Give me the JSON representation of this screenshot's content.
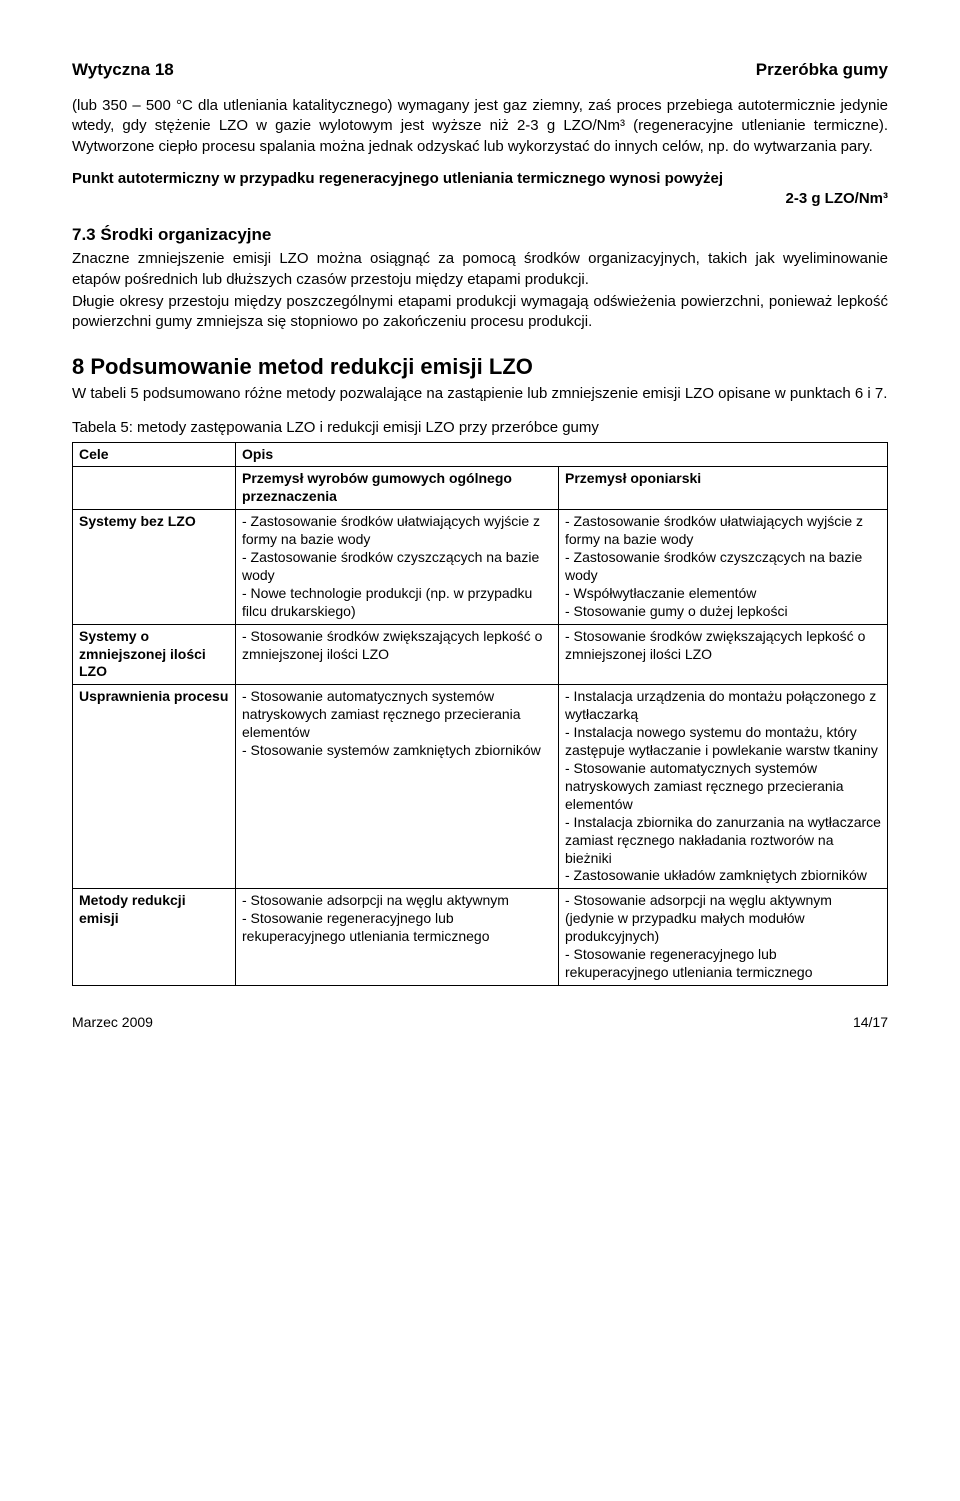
{
  "header": {
    "left": "Wytyczna 18",
    "right": "Przeróbka gumy"
  },
  "p1": "(lub 350 – 500 °C dla utleniania katalitycznego) wymagany jest gaz ziemny, zaś proces przebiega autotermicznie jedynie wtedy, gdy stężenie LZO w gazie wylotowym jest wyższe niż 2-3 g LZO/Nm³ (regeneracyjne utlenianie termiczne). Wytworzone ciepło procesu spalania można jednak odzyskać lub wykorzystać do innych celów, np. do wytwarzania pary.",
  "bold1_line1": "Punkt autotermiczny w przypadku regeneracyjnego utleniania termicznego wynosi powyżej",
  "bold1_line2": "2-3 g LZO/Nm³",
  "sec73_title": "7.3   Środki organizacyjne",
  "p73a": "Znaczne zmniejszenie emisji LZO można osiągnąć za pomocą środków organizacyjnych, takich jak wyeliminowanie etapów pośrednich lub dłuższych czasów przestoju między etapami produkcji.",
  "p73b": "Długie okresy przestoju między poszczególnymi etapami produkcji wymagają odświeżenia powierzchni, ponieważ lepkość powierzchni gumy zmniejsza się stopniowo po zakończeniu procesu produkcji.",
  "sec8_title": "8   Podsumowanie metod redukcji emisji LZO",
  "p8": "W tabeli 5 podsumowano różne metody pozwalające na zastąpienie lub zmniejszenie emisji LZO opisane w punktach 6 i 7.",
  "table_caption": "Tabela 5: metody zastępowania LZO i redukcji emisji LZO przy przeróbce gumy",
  "table": {
    "head": {
      "c1": "Cele",
      "c2": "Opis",
      "c2a": "Przemysł wyrobów gumowych ogólnego przeznaczenia",
      "c2b": "Przemysł oponiarski"
    },
    "rows": [
      {
        "label": "Systemy bez LZO",
        "colA": [
          "-  Zastosowanie środków ułatwiających wyjście z formy na bazie wody",
          "-  Zastosowanie środków czyszczących na bazie wody",
          "-  Nowe technologie produkcji (np. w przypadku filcu drukarskiego)"
        ],
        "colB": [
          "-  Zastosowanie środków ułatwiających wyjście z formy na bazie wody",
          "-  Zastosowanie środków czyszczących na bazie wody",
          "-  Współwytłaczanie elementów",
          "-  Stosowanie gumy o dużej lepkości"
        ]
      },
      {
        "label": "Systemy o zmniejszonej ilości LZO",
        "colA": [
          "- Stosowanie środków zwiększających lepkość o zmniejszonej ilości LZO"
        ],
        "colB": [
          "- Stosowanie środków zwiększających lepkość o zmniejszonej ilości LZO"
        ]
      },
      {
        "label": "Usprawnienia procesu",
        "colA": [
          "-  Stosowanie automatycznych systemów natryskowych zamiast ręcznego przecierania elementów",
          "-  Stosowanie systemów zamkniętych zbiorników"
        ],
        "colB": [
          "-  Instalacja urządzenia do montażu połączonego z wytłaczarką",
          "-  Instalacja nowego systemu do montażu, który zastępuje wytłaczanie i powlekanie warstw tkaniny",
          "- Stosowanie automatycznych systemów natryskowych zamiast ręcznego przecierania elementów",
          "-  Instalacja zbiornika do zanurzania na wytłaczarce zamiast ręcznego nakładania roztworów na bieżniki",
          "-  Zastosowanie układów zamkniętych zbiorników"
        ]
      },
      {
        "label": "Metody redukcji emisji",
        "colA": [
          "-  Stosowanie adsorpcji na węglu aktywnym",
          "-  Stosowanie regeneracyjnego lub rekuperacyjnego utleniania termicznego"
        ],
        "colB": [
          "- Stosowanie adsorpcji na węglu aktywnym (jedynie w przypadku małych modułów produkcyjnych)",
          "- Stosowanie regeneracyjnego lub rekuperacyjnego utleniania termicznego"
        ]
      }
    ]
  },
  "footer": {
    "left": "Marzec 2009",
    "right": "14/17"
  }
}
